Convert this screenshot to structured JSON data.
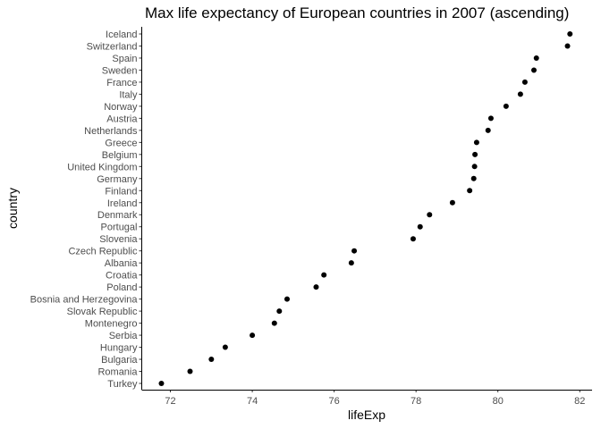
{
  "chart_data": {
    "type": "scatter",
    "title": "Max life expectancy of European countries in 2007 (ascending)",
    "xlabel": "lifeExp",
    "ylabel": "country",
    "xlim": [
      71.3,
      82.3
    ],
    "xticks": [
      72,
      74,
      76,
      78,
      80,
      82
    ],
    "grid": false,
    "legend": "none",
    "point_color": "#000000",
    "categories": [
      "Turkey",
      "Romania",
      "Bulgaria",
      "Hungary",
      "Serbia",
      "Montenegro",
      "Slovak Republic",
      "Bosnia and Herzegovina",
      "Poland",
      "Croatia",
      "Albania",
      "Czech Republic",
      "Slovenia",
      "Portugal",
      "Denmark",
      "Ireland",
      "Finland",
      "Germany",
      "United Kingdom",
      "Belgium",
      "Greece",
      "Netherlands",
      "Austria",
      "Norway",
      "Italy",
      "France",
      "Sweden",
      "Spain",
      "Switzerland",
      "Iceland"
    ],
    "values": [
      71.78,
      72.48,
      73.0,
      73.34,
      74.0,
      74.54,
      74.66,
      74.85,
      75.56,
      75.75,
      76.42,
      76.49,
      77.93,
      78.1,
      78.33,
      78.89,
      79.31,
      79.41,
      79.43,
      79.44,
      79.48,
      79.76,
      79.83,
      80.2,
      80.55,
      80.66,
      80.88,
      80.94,
      81.7,
      81.76
    ]
  }
}
